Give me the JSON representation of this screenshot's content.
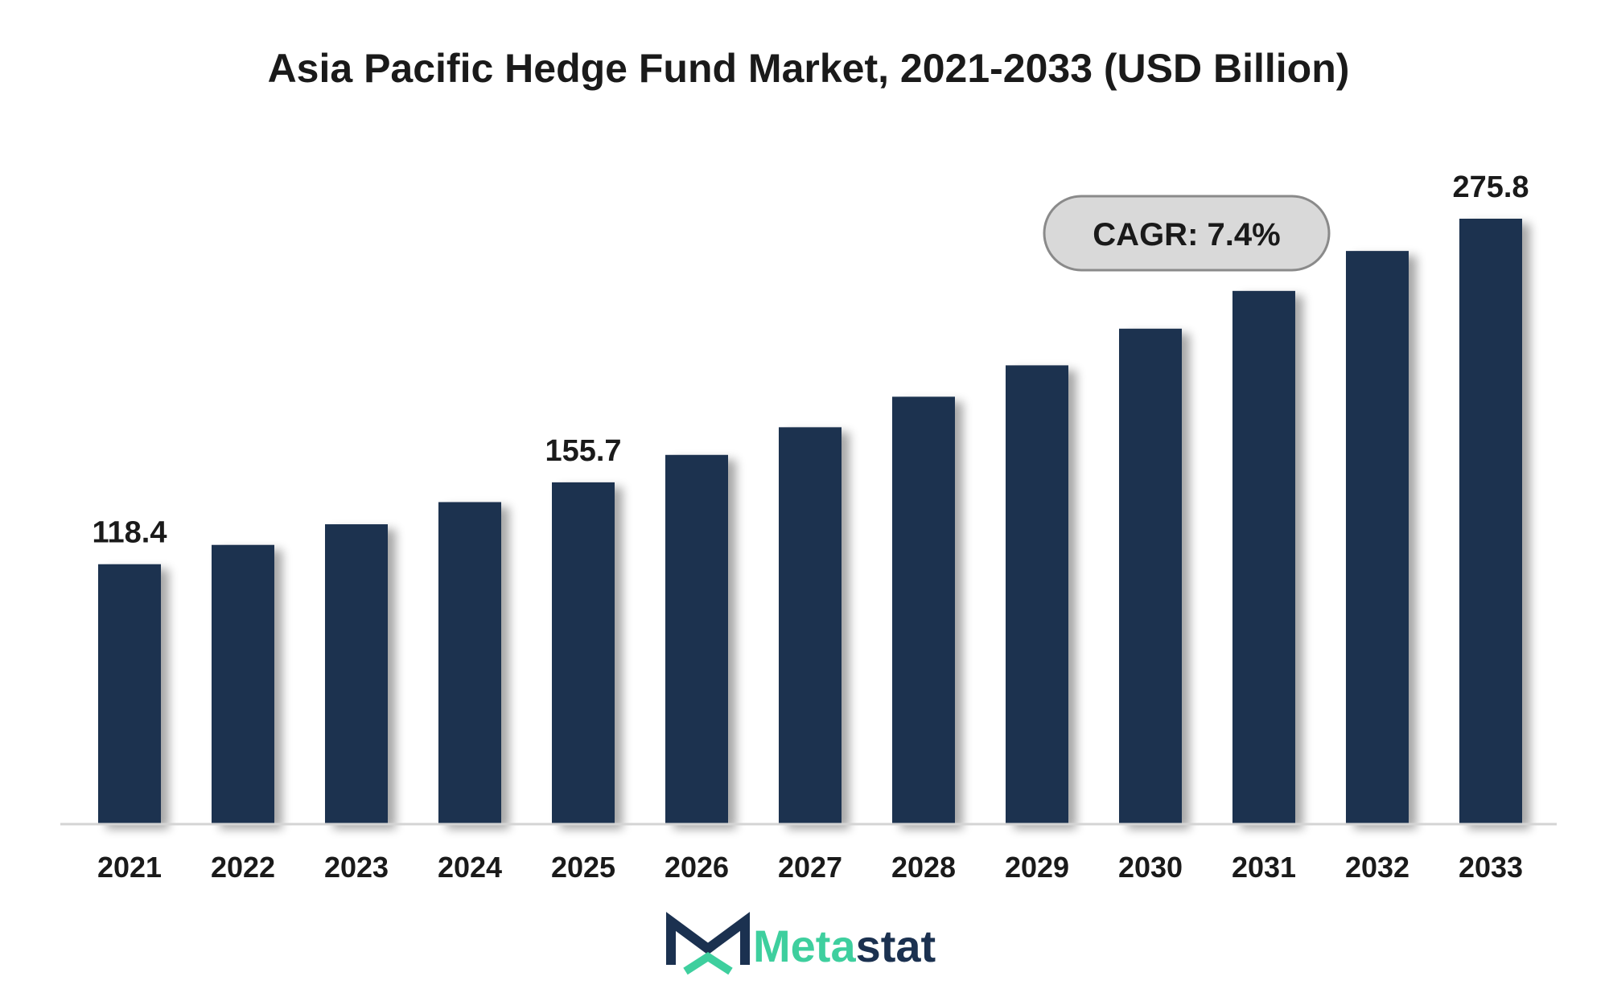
{
  "chart_data": {
    "type": "bar",
    "title": "Asia Pacific Hedge Fund Market, 2021-2033 (USD Billion)",
    "xlabel": "",
    "ylabel": "",
    "categories": [
      "2021",
      "2022",
      "2023",
      "2024",
      "2025",
      "2026",
      "2027",
      "2028",
      "2029",
      "2030",
      "2031",
      "2032",
      "2033"
    ],
    "values": [
      118.4,
      127.2,
      136.6,
      146.7,
      155.7,
      168.2,
      180.8,
      194.7,
      209.0,
      225.7,
      242.9,
      261.1,
      275.8
    ],
    "data_labels": [
      {
        "index": 0,
        "text": "118.4"
      },
      {
        "index": 4,
        "text": "155.7"
      },
      {
        "index": 12,
        "text": "275.8"
      }
    ],
    "ylim": [
      0,
      300
    ],
    "grid": false,
    "legend": "none",
    "annotation": "CAGR: 7.4%",
    "bar_color": "#1b3150"
  },
  "brand": {
    "name_part1": "Meta",
    "name_part2": "stat",
    "color_dark": "#1b3150",
    "color_accent": "#3ecf9e",
    "icon": "metastat-m-logo-icon"
  }
}
